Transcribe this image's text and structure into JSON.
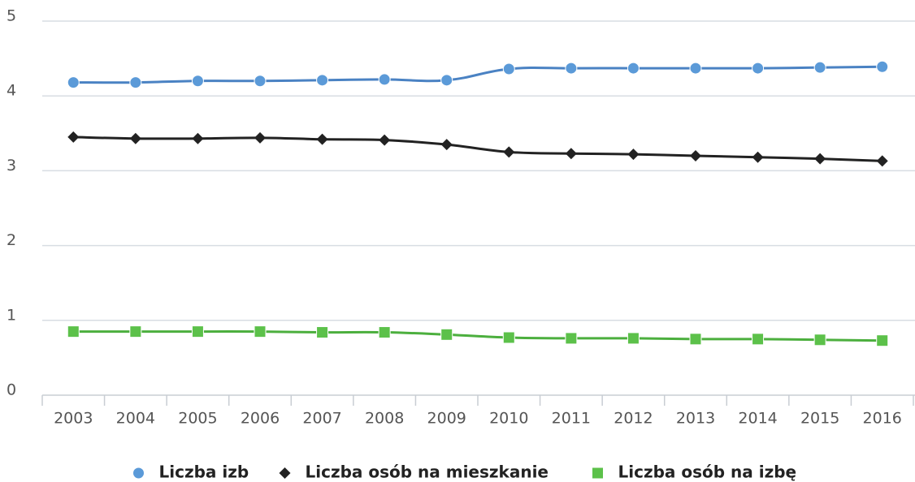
{
  "chart_data": {
    "type": "line",
    "categories": [
      "2003",
      "2004",
      "2005",
      "2006",
      "2007",
      "2008",
      "2009",
      "2010",
      "2011",
      "2012",
      "2013",
      "2014",
      "2015",
      "2016"
    ],
    "series": [
      {
        "name": "Liczba izb",
        "color": "#4a82c3",
        "marker": "circle",
        "values": [
          4.18,
          4.18,
          4.2,
          4.2,
          4.21,
          4.22,
          4.21,
          4.36,
          4.37,
          4.37,
          4.37,
          4.37,
          4.38,
          4.39
        ]
      },
      {
        "name": "Liczba osób na mieszkanie",
        "color": "#222222",
        "marker": "diamond",
        "values": [
          3.45,
          3.43,
          3.43,
          3.44,
          3.42,
          3.41,
          3.35,
          3.25,
          3.23,
          3.22,
          3.2,
          3.18,
          3.16,
          3.13
        ]
      },
      {
        "name": "Liczba osób na izbę",
        "color": "#4caf3e",
        "marker": "square",
        "values": [
          0.85,
          0.85,
          0.85,
          0.85,
          0.84,
          0.84,
          0.81,
          0.77,
          0.76,
          0.76,
          0.75,
          0.75,
          0.74,
          0.73
        ]
      }
    ],
    "ylim": [
      0,
      5
    ],
    "yticks": [
      0,
      1,
      2,
      3,
      4,
      5
    ],
    "grid": true,
    "legend": "bottom"
  }
}
